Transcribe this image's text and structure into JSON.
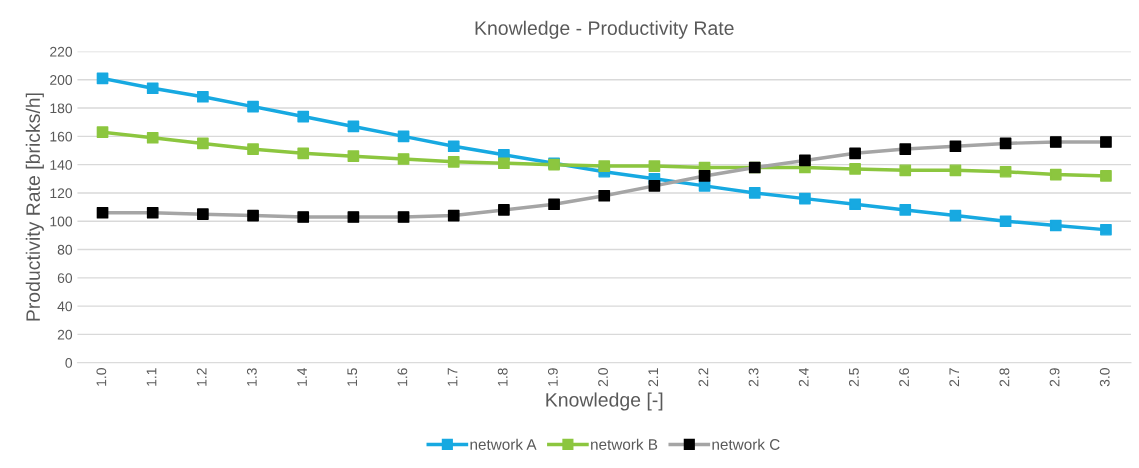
{
  "chart_data": {
    "type": "line",
    "title": "Knowledge - Productivity Rate",
    "xlabel": "Knowledge [-]",
    "ylabel": "Productivity Rate [bricks/h]",
    "categories": [
      "1.0",
      "1.1",
      "1.2",
      "1.3",
      "1.4",
      "1.5",
      "1.6",
      "1.7",
      "1.8",
      "1.9",
      "2.0",
      "2.1",
      "2.2",
      "2.3",
      "2.4",
      "2.5",
      "2.6",
      "2.7",
      "2.8",
      "2.9",
      "3.0"
    ],
    "series": [
      {
        "name": "network A",
        "color": "#17a9e1",
        "values": [
          201,
          194,
          188,
          181,
          174,
          167,
          160,
          153,
          147,
          141,
          135,
          130,
          125,
          120,
          116,
          112,
          108,
          104,
          100,
          97,
          94
        ]
      },
      {
        "name": "network B",
        "color": "#8cc63f",
        "values": [
          163,
          159,
          155,
          151,
          148,
          146,
          144,
          142,
          141,
          140,
          139,
          139,
          138,
          138,
          138,
          137,
          136,
          136,
          135,
          133,
          132
        ]
      },
      {
        "name": "network C",
        "color": "#a5a5a5",
        "colors": [
          "#000000",
          "#000000",
          "#000000",
          "#000000",
          "#000000",
          "#000000",
          "#000000",
          "#000000",
          "#000000",
          "#000000",
          "#000000",
          "#000000",
          "#000000",
          "#000000",
          "#000000",
          "#000000",
          "#000000",
          "#000000",
          "#000000",
          "#000000",
          "#000000"
        ],
        "values": [
          106,
          106,
          105,
          104,
          103,
          103,
          103,
          104,
          108,
          112,
          118,
          125,
          132,
          138,
          143,
          148,
          151,
          153,
          155,
          156,
          156
        ]
      }
    ],
    "ylim": [
      0,
      220
    ],
    "yticks": [
      0,
      20,
      40,
      60,
      80,
      100,
      120,
      140,
      160,
      180,
      200,
      220
    ],
    "grid": "y",
    "legend": "bottom",
    "marker": "square",
    "line_style": "solid"
  }
}
